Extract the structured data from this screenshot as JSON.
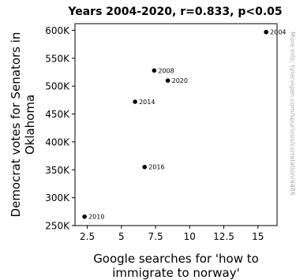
{
  "chart_data": {
    "type": "scatter",
    "title": "Years 2004-2020, r=0.833, p<0.05",
    "xlabel": [
      "Google searches for 'how to",
      "immigrate to norway'"
    ],
    "ylabel": [
      "Democrat votes for Senators in",
      "Oklahoma"
    ],
    "xlim": [
      1.6,
      16.4
    ],
    "ylim": [
      250000,
      612000
    ],
    "xticks": [
      2.5,
      5,
      7.5,
      10,
      12.5,
      15
    ],
    "xtick_labels": [
      "2.5",
      "5",
      "7.5",
      "10",
      "12.5",
      "15"
    ],
    "yticks": [
      250000,
      300000,
      350000,
      400000,
      450000,
      500000,
      550000,
      600000
    ],
    "ytick_labels": [
      "250K",
      "300K",
      "350K",
      "400K",
      "450K",
      "500K",
      "550K",
      "600K"
    ],
    "grid": false,
    "points": [
      {
        "label": "2004",
        "x": 15.6,
        "y": 597000
      },
      {
        "label": "2008",
        "x": 7.4,
        "y": 528000
      },
      {
        "label": "2020",
        "x": 8.4,
        "y": 510000
      },
      {
        "label": "2014",
        "x": 6.0,
        "y": 472000
      },
      {
        "label": "2016",
        "x": 6.7,
        "y": 355000
      },
      {
        "label": "2010",
        "x": 2.3,
        "y": 266000
      }
    ],
    "watermark": "More info: tylervigen.com/spurious/correlation/4486",
    "colors": {
      "marker": "#000000",
      "axes": "#000000",
      "watermark": "#aaaaaa"
    }
  }
}
